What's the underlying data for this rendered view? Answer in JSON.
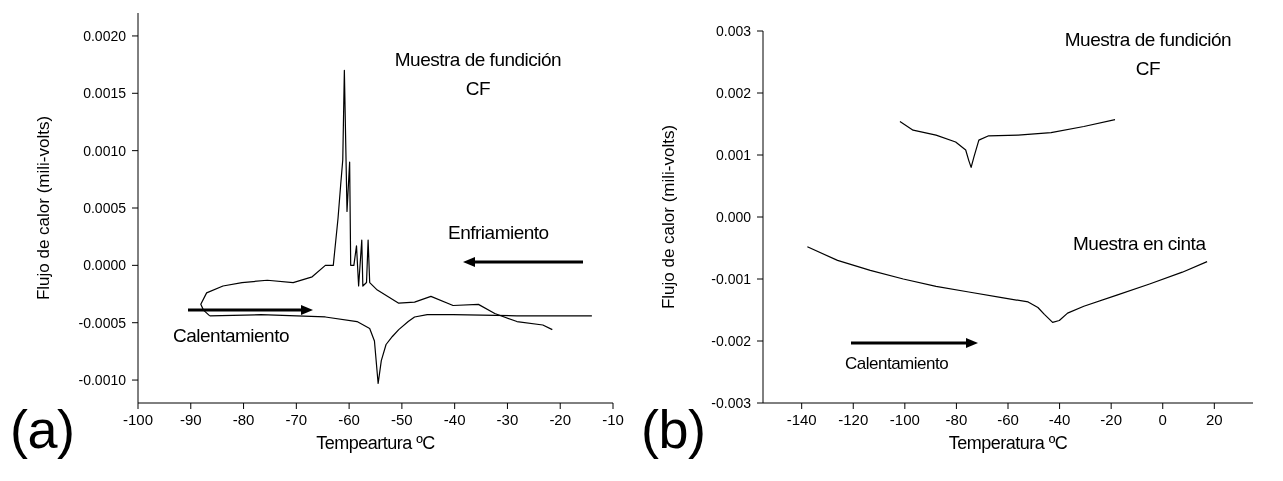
{
  "chart_data": [
    {
      "type": "line",
      "title": "Muestra de fundición\nCF",
      "xlabel": "Tempeartura ºC",
      "ylabel": "Flujo de calor (mili-volts)",
      "xlim": [
        -100,
        -10
      ],
      "xticks": [
        -100,
        -90,
        -80,
        -70,
        -60,
        -50,
        -40,
        -30,
        -20,
        -10
      ],
      "ylim": [
        -0.0012,
        0.0022
      ],
      "yticks": [
        {
          "value": 0.002,
          "label": "0.0020"
        },
        {
          "value": 0.0015,
          "label": "0.0015"
        },
        {
          "value": 0.001,
          "label": "0.0010"
        },
        {
          "value": 0.0005,
          "label": "0.0005"
        },
        {
          "value": 0,
          "label": "0.0000"
        },
        {
          "value": -0.0005,
          "label": "-0.0005"
        },
        {
          "value": -0.001,
          "label": "-0.0010"
        }
      ],
      "marker": "none",
      "line_style": "solid",
      "annotations": [
        "Enfriamiento",
        "Calentamiento",
        "(a)"
      ],
      "series": [
        {
          "color": "#000000",
          "x": [
            -21.5,
            -23.3,
            -28.2,
            -32.4,
            -35.5,
            -40.3,
            -44.5,
            -47.6,
            -50.6,
            -54.8,
            -56.1,
            -56.4,
            -56.7,
            -57.4,
            -57.6,
            -58.2,
            -58.6,
            -59.1,
            -59.7,
            -59.9,
            -60.4,
            -60.9,
            -61.2,
            -61.6,
            -62.1,
            -63.0,
            -64.5,
            -67.0,
            -70.6,
            -75.5,
            -80.3,
            -83.9,
            -87.0,
            -88.1,
            -87.6,
            -86.4
          ],
          "values": [
            -0.00056,
            -0.00052,
            -0.00049,
            -0.00042,
            -0.00034,
            -0.00035,
            -0.00027,
            -0.00032,
            -0.00033,
            -0.00021,
            -0.00015,
            0.00022,
            -0.00015,
            -0.00018,
            0.00022,
            -0.00018,
            0.00017,
            0,
            0,
            0.0009,
            0.00047,
            0.0017,
            0.00092,
            0.0007,
            0.00041,
            0,
            0,
            -0.0001,
            -0.00015,
            -0.00013,
            -0.00015,
            -0.00018,
            -0.00024,
            -0.00034,
            -0.00039,
            -0.00044
          ]
        },
        {
          "color": "#000000",
          "x": [
            -86.4,
            -76.7,
            -64.5,
            -58.5,
            -56.1,
            -55.2,
            -54.5,
            -53.9,
            -53.0,
            -51.8,
            -50.6,
            -48.8,
            -47.6,
            -45.2,
            -40.3,
            -28.2,
            -14
          ],
          "values": [
            -0.00044,
            -0.00043,
            -0.00045,
            -0.00049,
            -0.00055,
            -0.00066,
            -0.00103,
            -0.00083,
            -0.00069,
            -0.00062,
            -0.00056,
            -0.00049,
            -0.00045,
            -0.00043,
            -0.00043,
            -0.00044,
            -0.00044
          ]
        }
      ]
    },
    {
      "type": "line",
      "xlabel": "Temperatura ºC",
      "ylabel": "Flujo de calor (mili-volts)",
      "xlim": [
        -155,
        35
      ],
      "xticks": [
        -140,
        -120,
        -100,
        -80,
        -60,
        -40,
        -20,
        0,
        20
      ],
      "ylim": [
        -0.003,
        0.003
      ],
      "yticks": [
        {
          "value": 0.003,
          "label": "0.003"
        },
        {
          "value": 0.002,
          "label": "0.002"
        },
        {
          "value": 0.001,
          "label": "0.001"
        },
        {
          "value": 0,
          "label": "0.000"
        },
        {
          "value": -0.001,
          "label": "-0.001"
        },
        {
          "value": -0.002,
          "label": "-0.002"
        },
        {
          "value": -0.003,
          "label": "-0.003"
        }
      ],
      "marker": "none",
      "line_style": "solid",
      "annotations": [
        "Calentamiento",
        "(b)"
      ],
      "series": [
        {
          "name": "Muestra de fundición\nCF",
          "color": "#000000",
          "x": [
            -101.9,
            -96.8,
            -87.9,
            -80.3,
            -76.4,
            -75.2,
            -74.3,
            -73.2,
            -71.3,
            -67.5,
            -56.1,
            -43.3,
            -30.6,
            -18.5
          ],
          "values": [
            0.00154,
            0.0014,
            0.00132,
            0.00121,
            0.00108,
            0.00091,
            0.0008,
            0.00097,
            0.00124,
            0.00131,
            0.00132,
            0.00136,
            0.00146,
            0.00157
          ]
        },
        {
          "name": "Muestra en cinta",
          "color": "#000000",
          "x": [
            -137.8,
            -126.1,
            -113.4,
            -100.6,
            -87.9,
            -75.2,
            -62.4,
            -52.2,
            -48.4,
            -45.9,
            -42.7,
            -40.1,
            -36.9,
            -30.6,
            -17.8,
            -5.1,
            7.6,
            17.2
          ],
          "values": [
            -0.00048,
            -0.0007,
            -0.00086,
            -0.001,
            -0.00112,
            -0.00121,
            -0.0013,
            -0.00137,
            -0.00146,
            -0.00157,
            -0.0017,
            -0.00167,
            -0.00155,
            -0.00144,
            -0.00126,
            -0.00108,
            -0.00089,
            -0.00072
          ]
        }
      ]
    }
  ]
}
